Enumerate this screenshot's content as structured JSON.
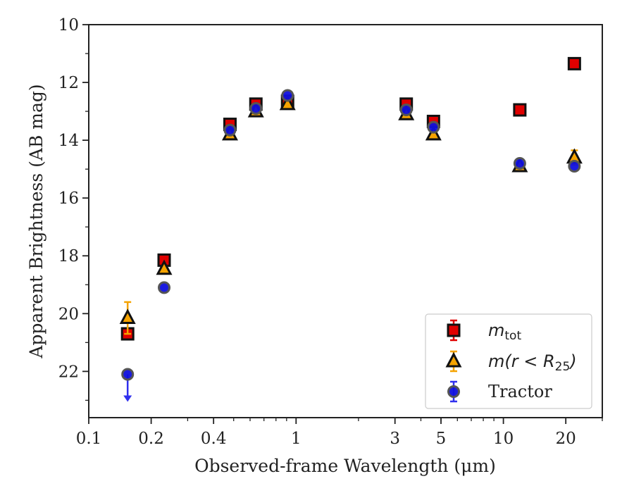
{
  "chart_data": {
    "type": "scatter",
    "xlabel": "Observed-frame Wavelength (μm)",
    "ylabel": "Apparent Brightness (AB mag)",
    "xscale": "log",
    "xlim": [
      0.1,
      30
    ],
    "ylim": [
      23.6,
      10
    ],
    "y_inverted": true,
    "grid": false,
    "legend_position": "lower-right",
    "x_ticks": [
      0.1,
      0.2,
      0.4,
      1,
      3,
      5,
      10,
      20
    ],
    "x_tick_labels": [
      "0.1",
      "0.2",
      "0.4",
      "1",
      "3",
      "5",
      "10",
      "20"
    ],
    "y_ticks": [
      10,
      12,
      14,
      16,
      18,
      20,
      22
    ],
    "y_tick_labels": [
      "10",
      "12",
      "14",
      "16",
      "18",
      "20",
      "22"
    ],
    "series": [
      {
        "name": "m_tot",
        "legend_label": {
          "base": "m",
          "sub": "tot"
        },
        "marker": "square",
        "color": "#e00000",
        "edge_color": "#111111",
        "x": [
          0.154,
          0.231,
          0.48,
          0.64,
          0.91,
          3.4,
          4.6,
          12.0,
          22.0
        ],
        "y": [
          20.7,
          18.15,
          13.45,
          12.75,
          12.65,
          12.75,
          13.35,
          12.95,
          11.35
        ],
        "yerr": [
          0.12,
          0.08,
          0.08,
          0.08,
          0.08,
          0.08,
          0.08,
          0.08,
          0.08
        ]
      },
      {
        "name": "m(r < R25)",
        "legend_label": {
          "base": "m(r < R",
          "sub": "25",
          "tail": ")"
        },
        "marker": "triangle",
        "color": "#f5a300",
        "edge_color": "#111111",
        "x": [
          0.154,
          0.231,
          0.48,
          0.64,
          0.91,
          3.4,
          4.6,
          12.0,
          22.0
        ],
        "y": [
          20.15,
          18.45,
          13.8,
          13.0,
          12.75,
          13.1,
          13.8,
          14.9,
          14.6
        ],
        "yerr": [
          0.55,
          0.08,
          0.08,
          0.08,
          0.08,
          0.08,
          0.08,
          0.08,
          0.25
        ]
      },
      {
        "name": "Tractor",
        "legend_label": {
          "base": "Tractor"
        },
        "marker": "circle",
        "color": "#1010dd",
        "edge_color": "#555555",
        "x": [
          0.154,
          0.231,
          0.48,
          0.64,
          0.91,
          3.4,
          4.6,
          12.0,
          22.0
        ],
        "y": [
          22.1,
          19.1,
          13.65,
          12.9,
          12.45,
          12.95,
          13.55,
          14.8,
          14.9
        ],
        "yerr": [
          0.05,
          0.05,
          0.05,
          0.05,
          0.05,
          0.05,
          0.05,
          0.05,
          0.05
        ],
        "upper_limit_index": [
          0
        ]
      }
    ]
  }
}
